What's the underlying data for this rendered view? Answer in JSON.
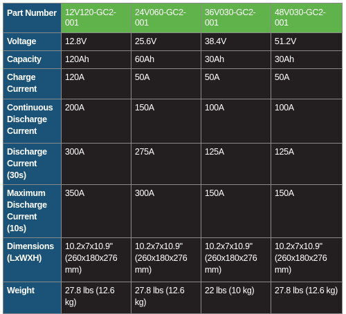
{
  "header": {
    "label": "Part Number",
    "models": [
      "12V120-GC2-001",
      "24V060-GC2-001",
      "36V030-GC2-001",
      "48V030-GC2-001"
    ]
  },
  "rows": [
    {
      "label": "Voltage",
      "values": [
        "12.8V",
        "25.6V",
        "38.4V",
        "51.2V"
      ]
    },
    {
      "label": "Capacity",
      "values": [
        "120Ah",
        "60Ah",
        "30Ah",
        "30Ah"
      ]
    },
    {
      "label": "Charge Current",
      "values": [
        "120A",
        "50A",
        "50A",
        "50A"
      ]
    },
    {
      "label": "Continuous Discharge Current",
      "values": [
        "200A",
        "150A",
        "100A",
        "100A"
      ]
    },
    {
      "label": "Discharge Current (30s)",
      "values": [
        "300A",
        "275A",
        "125A",
        "125A"
      ]
    },
    {
      "label": "Maximum Discharge Current (10s)",
      "values": [
        "350A",
        "300A",
        "150A",
        "150A"
      ]
    },
    {
      "label": "Dimensions (LxWXH)",
      "values": [
        "10.2x7x10.9\" (260x180x276 mm)",
        "10.2x7x10.9\" (260x180x276 mm)",
        "10.2x7x10.9\" (260x180x276 mm)",
        "10.2x7x10.9\" (260x180x276 mm)"
      ]
    },
    {
      "label": "Weight",
      "values": [
        "27.8 lbs (12.6 kg)",
        "27.8 lbs (12.6 kg)",
        "22 lbs (10 kg)",
        "27.8 lbs (12.6 kg)"
      ]
    }
  ],
  "colors": {
    "row_header_bg": "#1b5277",
    "column_header_bg": "#5fb34a",
    "cell_bg": "#231f20",
    "border": "#8a8a8a",
    "text": "#ffffff"
  }
}
